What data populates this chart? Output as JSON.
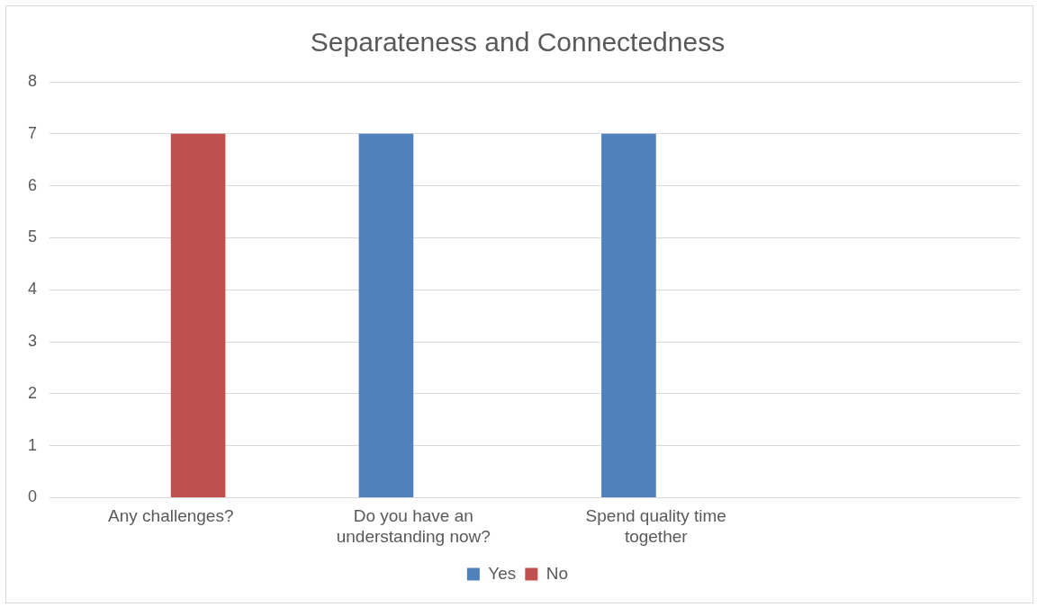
{
  "chart_data": {
    "type": "bar",
    "title": "Separateness and Connectedness",
    "categories": [
      "Any challenges?",
      "Do you have an understanding now?",
      "Spend quality time together",
      null
    ],
    "series": [
      {
        "name": "Yes",
        "color": "#4f81bd",
        "values": [
          0,
          7,
          7,
          null
        ]
      },
      {
        "name": "No",
        "color": "#c0504d",
        "values": [
          7,
          0,
          0,
          null
        ]
      }
    ],
    "ylim": [
      0,
      8
    ],
    "yticks": [
      0,
      1,
      2,
      3,
      4,
      5,
      6,
      7,
      8
    ],
    "grid": "y",
    "legend": "bottom"
  }
}
